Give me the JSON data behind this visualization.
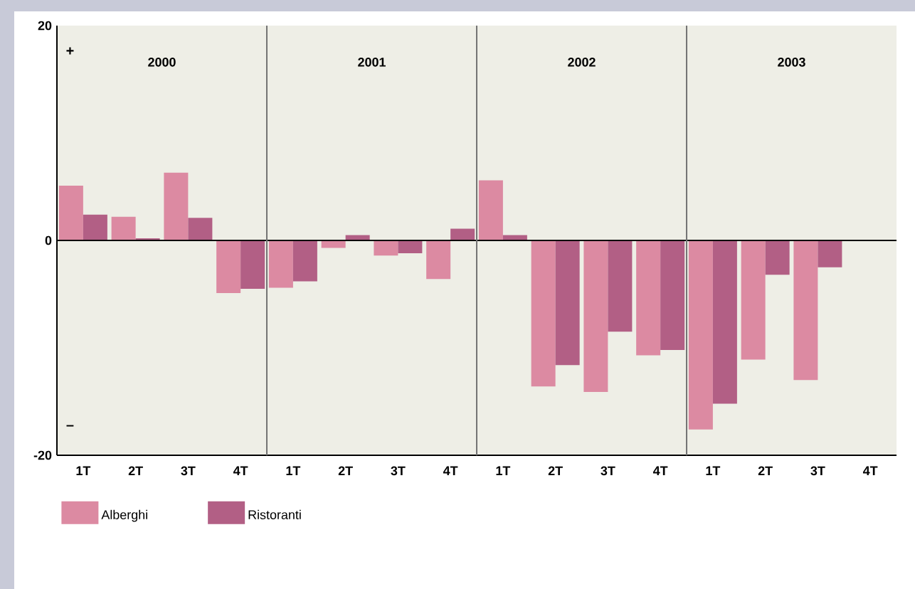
{
  "chart_data": {
    "type": "bar",
    "categories": [
      "1T",
      "2T",
      "3T",
      "4T",
      "1T",
      "2T",
      "3T",
      "4T",
      "1T",
      "2T",
      "3T",
      "4T",
      "1T",
      "2T",
      "3T",
      "4T"
    ],
    "series": [
      {
        "name": "Alberghi",
        "color": "#dc8aa2",
        "values": [
          5.1,
          2.2,
          6.3,
          -4.9,
          -4.4,
          -0.7,
          -1.4,
          -3.6,
          5.6,
          -13.6,
          -14.1,
          -10.7,
          -17.6,
          -11.1,
          -13.0,
          null
        ]
      },
      {
        "name": "Ristoranti",
        "color": "#b25f85",
        "values": [
          2.4,
          0.2,
          2.1,
          -4.5,
          -3.8,
          0.5,
          -1.2,
          1.1,
          0.5,
          -11.6,
          -8.5,
          -10.2,
          -15.2,
          -3.2,
          -2.5,
          null
        ]
      }
    ],
    "ylim": [
      -20,
      20
    ],
    "yticks": [
      -20,
      0,
      20
    ],
    "ref_lines": [
      {
        "axis": "y",
        "value": 0
      }
    ],
    "annotations": [
      "+",
      "–",
      "2000",
      "2001",
      "2002",
      "2003"
    ],
    "legend": "bottom",
    "grid": false
  }
}
